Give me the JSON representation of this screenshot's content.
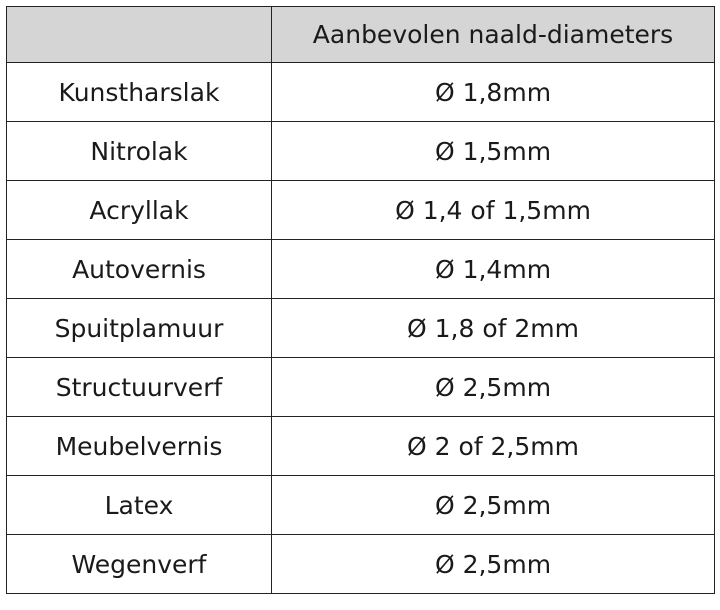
{
  "table": {
    "headers": [
      "",
      "Aanbevolen naald-diameters"
    ],
    "rows": [
      {
        "material": "Kunstharslak",
        "diameter": "Ø 1,8mm"
      },
      {
        "material": "Nitrolak",
        "diameter": "Ø 1,5mm"
      },
      {
        "material": "Acryllak",
        "diameter": "Ø 1,4 of 1,5mm"
      },
      {
        "material": "Autovernis",
        "diameter": "Ø 1,4mm"
      },
      {
        "material": "Spuitplamuur",
        "diameter": "Ø 1,8 of 2mm"
      },
      {
        "material": "Structuurverf",
        "diameter": "Ø 2,5mm"
      },
      {
        "material": "Meubelvernis",
        "diameter": "Ø 2 of 2,5mm"
      },
      {
        "material": "Latex",
        "diameter": "Ø 2,5mm"
      },
      {
        "material": "Wegenverf",
        "diameter": "Ø 2,5mm"
      }
    ],
    "header_color": "#d5d5d5"
  }
}
